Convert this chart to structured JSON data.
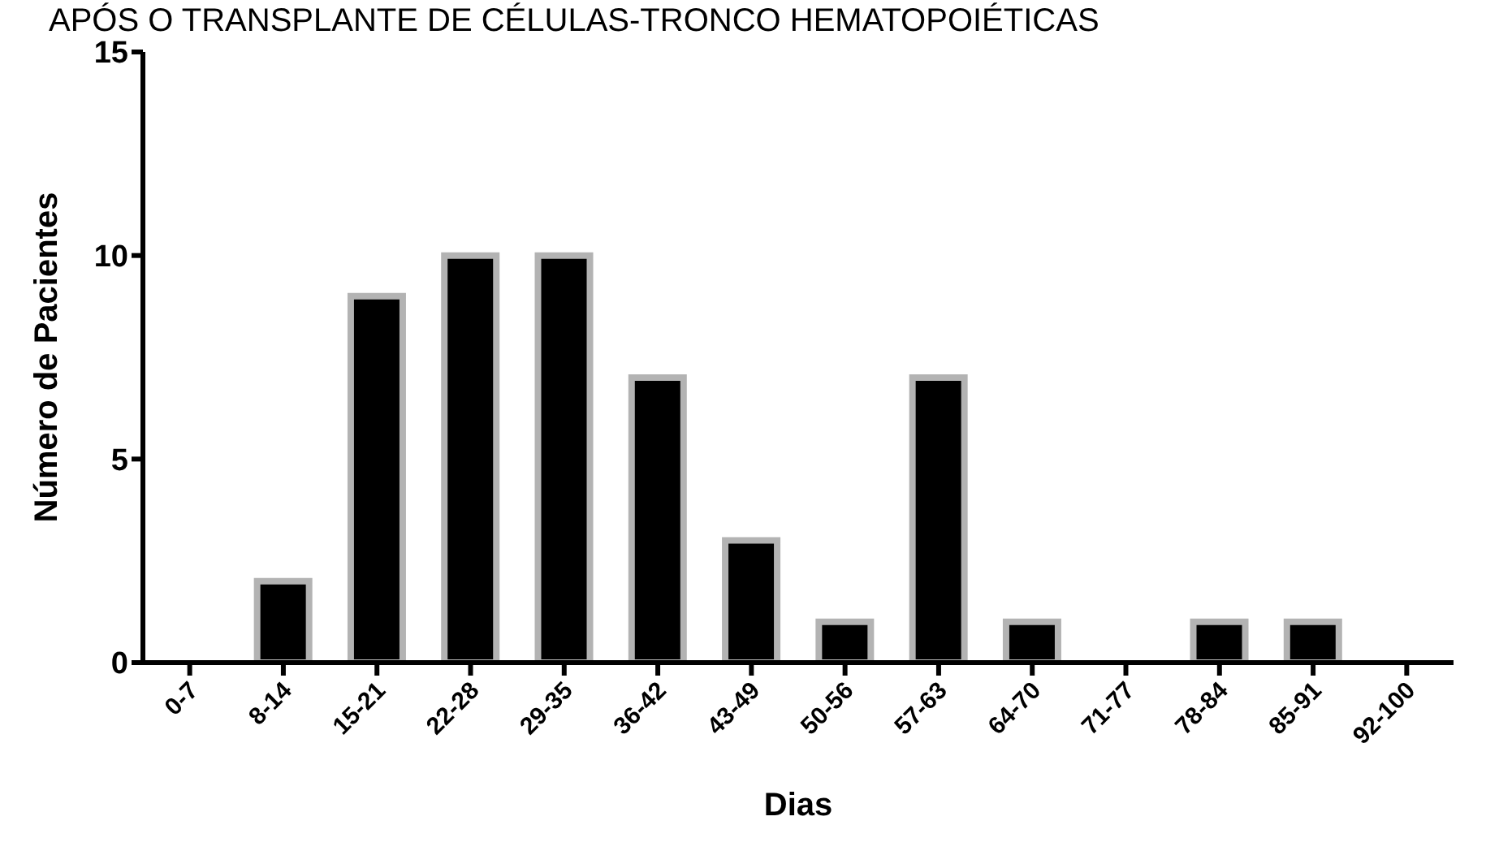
{
  "chart_data": {
    "type": "bar",
    "title": "APÓS O TRANSPLANTE DE CÉLULAS-TRONCO HEMATOPOIÉTICAS",
    "xlabel": "Dias",
    "ylabel": "Número de Pacientes",
    "categories": [
      "0-7",
      "8-14",
      "15-21",
      "22-28",
      "29-35",
      "36-42",
      "43-49",
      "50-56",
      "57-63",
      "64-70",
      "71-77",
      "78-84",
      "85-91",
      "92-100"
    ],
    "values": [
      0,
      2,
      9,
      10,
      10,
      7,
      3,
      1,
      7,
      1,
      0,
      1,
      1,
      0
    ],
    "color": "#000000",
    "ylim": [
      0,
      15
    ],
    "yticks": [
      0,
      5,
      10,
      15
    ]
  }
}
